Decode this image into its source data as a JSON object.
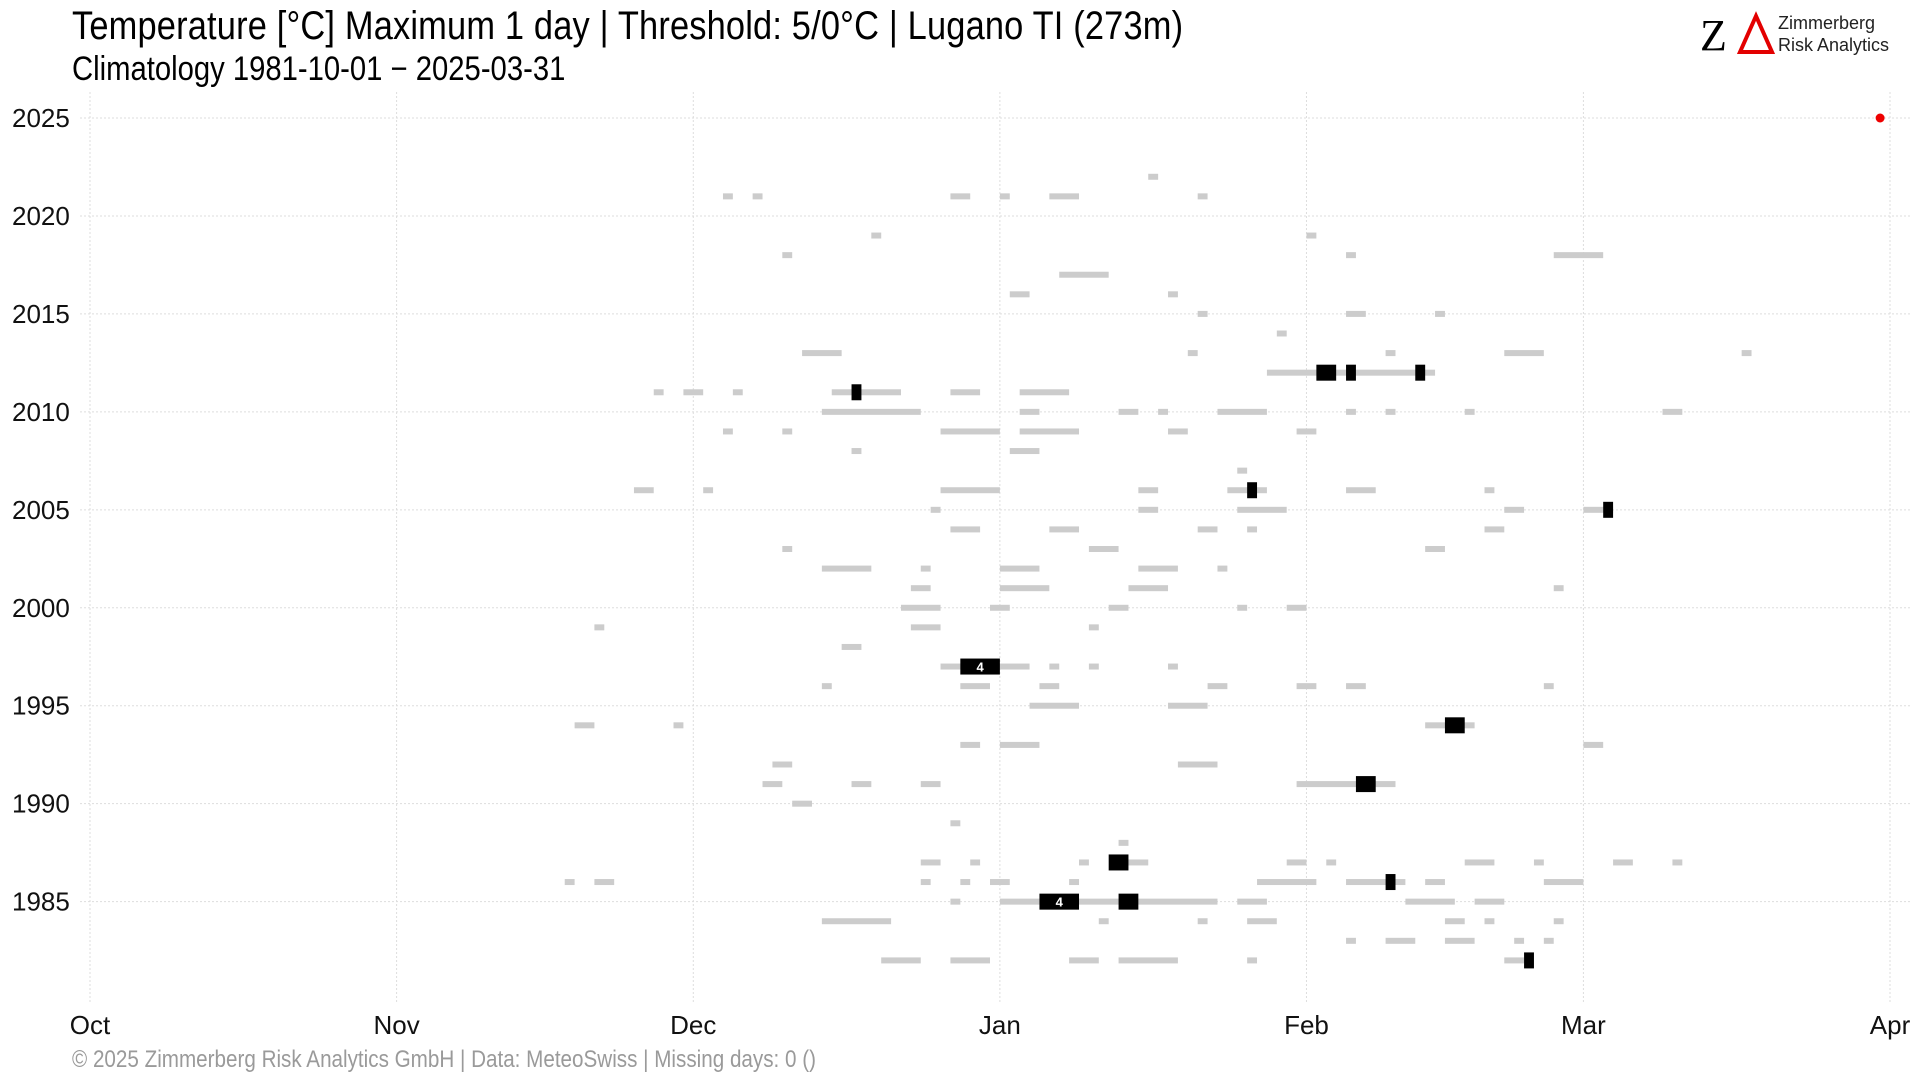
{
  "header": {
    "title": "Temperature [°C] Maximum 1 day | Threshold: 5/0°C | Lugano  TI (273m)",
    "subtitle": "Climatology 1981-10-01 − 2025-03-31"
  },
  "logo": {
    "mark": "ZΔ",
    "line1": "Zimmerberg",
    "line2": "Risk Analytics"
  },
  "footer": {
    "text": "©  2025 Zimmerberg Risk Analytics GmbH | Data: MeteoSwiss | Missing days: 0 ()"
  },
  "colors": {
    "background": "#ffffff",
    "grid": "#dddddd",
    "light_event": "#cccccc",
    "strong_event": "#000000",
    "current_marker": "#ee0000"
  },
  "chart_data": {
    "type": "timeline",
    "x_axis": {
      "start": "10-01",
      "end": "04-01",
      "ticks": [
        "Oct",
        "Nov",
        "Dec",
        "Jan",
        "Feb",
        "Mar",
        "Apr"
      ],
      "tick_days": [
        0,
        31,
        61,
        92,
        123,
        151,
        182
      ]
    },
    "y_axis": {
      "ylim": [
        1981,
        2025
      ],
      "ticks": [
        1985,
        1990,
        1995,
        2000,
        2005,
        2010,
        2015,
        2020,
        2025
      ]
    },
    "grid": true,
    "current_marker": {
      "year": 2025,
      "day": 181
    },
    "light_events": [
      [
        2022,
        107,
        1
      ],
      [
        2021,
        64,
        1
      ],
      [
        2021,
        67,
        1
      ],
      [
        2021,
        87,
        2
      ],
      [
        2021,
        92,
        1
      ],
      [
        2021,
        97,
        3
      ],
      [
        2021,
        112,
        1
      ],
      [
        2019,
        79,
        1
      ],
      [
        2019,
        123,
        1
      ],
      [
        2018,
        70,
        1
      ],
      [
        2018,
        127,
        1
      ],
      [
        2018,
        148,
        5
      ],
      [
        2017,
        98,
        5
      ],
      [
        2016,
        93,
        2
      ],
      [
        2016,
        109,
        1
      ],
      [
        2015,
        112,
        1
      ],
      [
        2015,
        127,
        2
      ],
      [
        2015,
        136,
        1
      ],
      [
        2014,
        120,
        1
      ],
      [
        2013,
        72,
        4
      ],
      [
        2013,
        111,
        1
      ],
      [
        2013,
        131,
        1
      ],
      [
        2013,
        143,
        4
      ],
      [
        2013,
        167,
        1
      ],
      [
        2012,
        119,
        17
      ],
      [
        2011,
        57,
        1
      ],
      [
        2011,
        60,
        2
      ],
      [
        2011,
        65,
        1
      ],
      [
        2011,
        75,
        7
      ],
      [
        2011,
        87,
        3
      ],
      [
        2011,
        94,
        5
      ],
      [
        2010,
        74,
        10
      ],
      [
        2010,
        94,
        2
      ],
      [
        2010,
        104,
        2
      ],
      [
        2010,
        108,
        1
      ],
      [
        2010,
        114,
        5
      ],
      [
        2010,
        127,
        1
      ],
      [
        2010,
        131,
        1
      ],
      [
        2010,
        139,
        1
      ],
      [
        2010,
        159,
        2
      ],
      [
        2009,
        64,
        1
      ],
      [
        2009,
        70,
        1
      ],
      [
        2009,
        86,
        6
      ],
      [
        2009,
        94,
        6
      ],
      [
        2009,
        109,
        2
      ],
      [
        2009,
        122,
        2
      ],
      [
        2008,
        77,
        1
      ],
      [
        2008,
        93,
        3
      ],
      [
        2007,
        116,
        1
      ],
      [
        2006,
        55,
        2
      ],
      [
        2006,
        62,
        1
      ],
      [
        2006,
        86,
        6
      ],
      [
        2006,
        106,
        2
      ],
      [
        2006,
        115,
        4
      ],
      [
        2006,
        127,
        3
      ],
      [
        2006,
        141,
        1
      ],
      [
        2005,
        85,
        1
      ],
      [
        2005,
        106,
        2
      ],
      [
        2005,
        116,
        5
      ],
      [
        2005,
        143,
        2
      ],
      [
        2005,
        151,
        3
      ],
      [
        2004,
        87,
        3
      ],
      [
        2004,
        97,
        3
      ],
      [
        2004,
        112,
        2
      ],
      [
        2004,
        117,
        1
      ],
      [
        2004,
        141,
        2
      ],
      [
        2003,
        70,
        1
      ],
      [
        2003,
        101,
        3
      ],
      [
        2003,
        135,
        2
      ],
      [
        2002,
        74,
        5
      ],
      [
        2002,
        84,
        1
      ],
      [
        2002,
        92,
        4
      ],
      [
        2002,
        106,
        4
      ],
      [
        2002,
        114,
        1
      ],
      [
        2001,
        83,
        2
      ],
      [
        2001,
        92,
        5
      ],
      [
        2001,
        105,
        4
      ],
      [
        2001,
        148,
        1
      ],
      [
        2000,
        82,
        4
      ],
      [
        2000,
        91,
        2
      ],
      [
        2000,
        103,
        2
      ],
      [
        2000,
        116,
        1
      ],
      [
        2000,
        121,
        2
      ],
      [
        1999,
        51,
        1
      ],
      [
        1999,
        83,
        3
      ],
      [
        1999,
        101,
        1
      ],
      [
        1998,
        76,
        2
      ],
      [
        1997,
        86,
        9
      ],
      [
        1997,
        97,
        1
      ],
      [
        1997,
        101,
        1
      ],
      [
        1997,
        109,
        1
      ],
      [
        1996,
        74,
        1
      ],
      [
        1996,
        88,
        3
      ],
      [
        1996,
        96,
        2
      ],
      [
        1996,
        113,
        2
      ],
      [
        1996,
        122,
        2
      ],
      [
        1996,
        127,
        2
      ],
      [
        1996,
        147,
        1
      ],
      [
        1995,
        95,
        5
      ],
      [
        1995,
        109,
        4
      ],
      [
        1994,
        49,
        2
      ],
      [
        1994,
        59,
        1
      ],
      [
        1994,
        135,
        5
      ],
      [
        1993,
        88,
        2
      ],
      [
        1993,
        92,
        4
      ],
      [
        1993,
        151,
        2
      ],
      [
        1992,
        69,
        2
      ],
      [
        1992,
        110,
        4
      ],
      [
        1991,
        68,
        2
      ],
      [
        1991,
        77,
        2
      ],
      [
        1991,
        84,
        2
      ],
      [
        1991,
        122,
        10
      ],
      [
        1990,
        71,
        2
      ],
      [
        1989,
        87,
        1
      ],
      [
        1988,
        104,
        1
      ],
      [
        1987,
        84,
        2
      ],
      [
        1987,
        89,
        1
      ],
      [
        1987,
        100,
        1
      ],
      [
        1987,
        104,
        3
      ],
      [
        1987,
        121,
        2
      ],
      [
        1987,
        125,
        1
      ],
      [
        1987,
        139,
        3
      ],
      [
        1987,
        146,
        1
      ],
      [
        1987,
        154,
        2
      ],
      [
        1987,
        160,
        1
      ],
      [
        1986,
        48,
        1
      ],
      [
        1986,
        51,
        2
      ],
      [
        1986,
        84,
        1
      ],
      [
        1986,
        88,
        1
      ],
      [
        1986,
        91,
        2
      ],
      [
        1986,
        99,
        1
      ],
      [
        1986,
        118,
        6
      ],
      [
        1986,
        127,
        6
      ],
      [
        1986,
        135,
        2
      ],
      [
        1986,
        147,
        4
      ],
      [
        1985,
        87,
        1
      ],
      [
        1985,
        92,
        22
      ],
      [
        1985,
        116,
        3
      ],
      [
        1985,
        133,
        5
      ],
      [
        1985,
        140,
        3
      ],
      [
        1984,
        74,
        7
      ],
      [
        1984,
        102,
        1
      ],
      [
        1984,
        112,
        1
      ],
      [
        1984,
        117,
        3
      ],
      [
        1984,
        137,
        2
      ],
      [
        1984,
        141,
        1
      ],
      [
        1984,
        148,
        1
      ],
      [
        1983,
        127,
        1
      ],
      [
        1983,
        131,
        3
      ],
      [
        1983,
        137,
        3
      ],
      [
        1983,
        144,
        1
      ],
      [
        1983,
        147,
        1
      ],
      [
        1982,
        80,
        4
      ],
      [
        1982,
        87,
        4
      ],
      [
        1982,
        99,
        3
      ],
      [
        1982,
        104,
        6
      ],
      [
        1982,
        117,
        1
      ],
      [
        1982,
        143,
        2
      ]
    ],
    "strong_events": [
      [
        2012,
        124,
        2
      ],
      [
        2012,
        127,
        1
      ],
      [
        2012,
        134,
        1
      ],
      [
        2011,
        77,
        1
      ],
      [
        2006,
        117,
        1
      ],
      [
        2005,
        153,
        1
      ],
      [
        1997,
        88,
        4,
        "4"
      ],
      [
        1994,
        137,
        2
      ],
      [
        1991,
        128,
        2
      ],
      [
        1987,
        103,
        2
      ],
      [
        1986,
        131,
        1
      ],
      [
        1985,
        96,
        4,
        "4"
      ],
      [
        1985,
        104,
        2
      ],
      [
        1982,
        145,
        1
      ]
    ]
  }
}
